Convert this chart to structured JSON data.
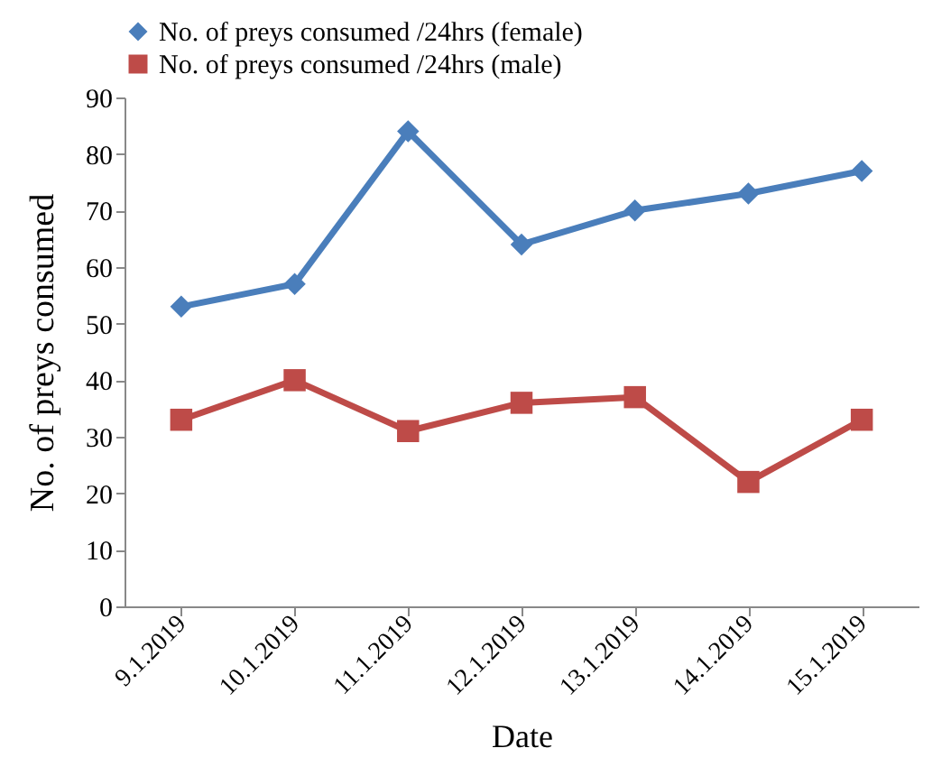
{
  "chart_data": {
    "type": "line",
    "xlabel": "Date",
    "ylabel": "No. of preys consumed",
    "categories": [
      "9.1.2019",
      "10.1.2019",
      "11.1.2019",
      "12.1.2019",
      "13.1.2019",
      "14.1.2019",
      "15.1.2019"
    ],
    "series": [
      {
        "name": "No. of preys consumed /24hrs (female)",
        "color": "#4a7ebb",
        "marker": "diamond",
        "values": [
          53,
          57,
          84,
          64,
          70,
          73,
          77
        ]
      },
      {
        "name": "No. of preys consumed /24hrs (male)",
        "color": "#be4b48",
        "marker": "square",
        "values": [
          33,
          40,
          31,
          36,
          37,
          22,
          33
        ]
      }
    ],
    "ylim": [
      0,
      90
    ],
    "yticks": [
      0,
      10,
      20,
      30,
      40,
      50,
      60,
      70,
      80,
      90
    ],
    "grid": false,
    "legend": "top"
  }
}
